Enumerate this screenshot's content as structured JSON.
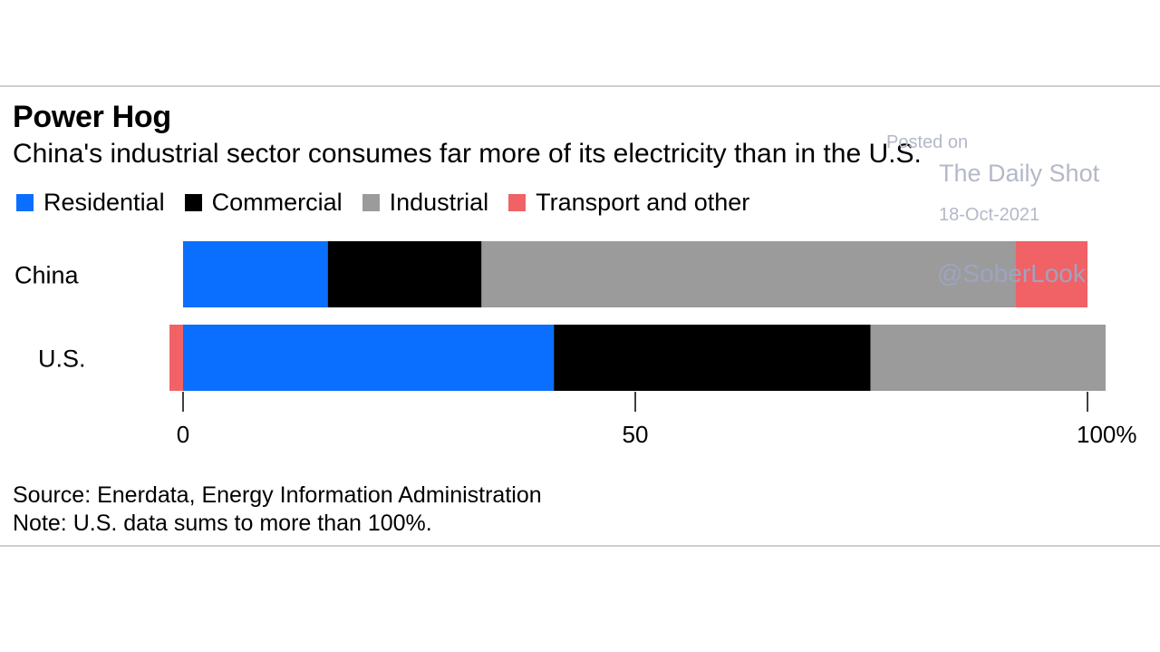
{
  "chart_data": {
    "type": "bar",
    "orientation": "horizontal",
    "stacked": true,
    "title": "Power Hog",
    "subtitle": "China's industrial sector consumes far more of its electricity than in the U.S.",
    "categories": [
      "China",
      "U.S."
    ],
    "series": [
      {
        "name": "Residential",
        "color": "#0a6eff",
        "values": [
          16,
          41
        ]
      },
      {
        "name": "Commercial",
        "color": "#000000",
        "values": [
          17,
          35
        ]
      },
      {
        "name": "Industrial",
        "color": "#9b9b9b",
        "values": [
          59,
          26
        ]
      },
      {
        "name": "Transport and other",
        "color": "#f06266",
        "values": [
          8,
          1.5
        ]
      }
    ],
    "xlim": [
      0,
      100
    ],
    "xticks": [
      "0",
      "50",
      "100%"
    ],
    "xtick_values": [
      0,
      50,
      100
    ],
    "legend_position": "top-left",
    "grid": false
  },
  "footer": {
    "source": "Source: Enerdata, Energy Information Administration",
    "note": "Note: U.S. data sums to more than 100%."
  },
  "watermark": {
    "posted": "Posted on",
    "site": "The Daily Shot",
    "date": "18-Oct-2021",
    "handle": "@SoberLook"
  }
}
